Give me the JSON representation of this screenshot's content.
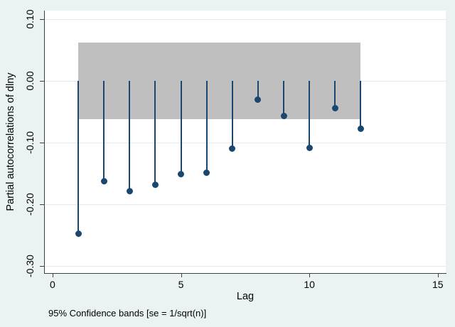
{
  "chart_data": {
    "type": "scatter",
    "style": "stem-lollipop needle plot (partial autocorrelation function)",
    "title": "",
    "xlabel": "Lag",
    "ylabel": "Partial autocorrelations of dlny",
    "note": "95% Confidence bands [se = 1/sqrt(n)]",
    "x": [
      1,
      2,
      3,
      4,
      5,
      6,
      7,
      8,
      9,
      10,
      11,
      12
    ],
    "values": [
      -0.248,
      -0.163,
      -0.179,
      -0.168,
      -0.151,
      -0.149,
      -0.11,
      -0.03,
      -0.057,
      -0.108,
      -0.044,
      -0.078
    ],
    "stem_base": 0,
    "confidence_band": {
      "low": -0.062,
      "high": 0.062,
      "x_start": 1,
      "x_end": 12
    },
    "xlim": [
      -0.33,
      15.31
    ],
    "ylim": [
      -0.3115,
      0.1139
    ],
    "xticks": [
      {
        "value": 0,
        "label": "0"
      },
      {
        "value": 5,
        "label": "5"
      },
      {
        "value": 10,
        "label": "10"
      },
      {
        "value": 15,
        "label": "15"
      }
    ],
    "yticks": [
      {
        "value": 0.1,
        "label": "0.10"
      },
      {
        "value": 0.0,
        "label": "0.00"
      },
      {
        "value": -0.1,
        "label": "-0.10"
      },
      {
        "value": -0.2,
        "label": "-0.20"
      },
      {
        "value": -0.3,
        "label": "-0.30"
      }
    ],
    "grid": true,
    "legend": "none"
  },
  "colors": {
    "marker": "#1a476f",
    "band": "#bfbfbf",
    "background": "#eaf2f3",
    "plot_background": "#ffffff",
    "gridline": "#e2ecee",
    "axis": "#404040",
    "text": "#000000"
  }
}
